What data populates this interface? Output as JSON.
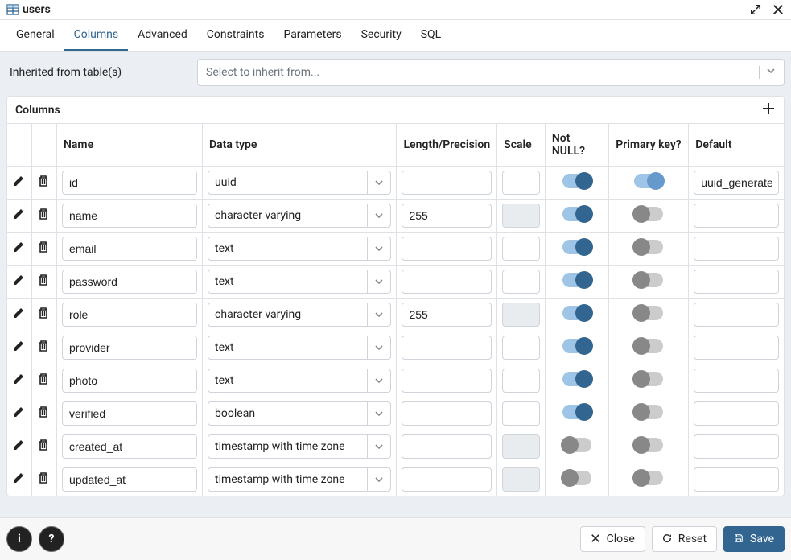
{
  "title": "users",
  "tabs": [
    "General",
    "Columns",
    "Advanced",
    "Constraints",
    "Parameters",
    "Security",
    "SQL"
  ],
  "activeTab": 1,
  "inherit": {
    "label": "Inherited from table(s)",
    "placeholder": "Select to inherit from..."
  },
  "panel": {
    "title": "Columns"
  },
  "headers": {
    "name": "Name",
    "datatype": "Data type",
    "length": "Length/Precision",
    "scale": "Scale",
    "notnull": "Not NULL?",
    "pk": "Primary key?",
    "def": "Default"
  },
  "rows": [
    {
      "name": "id",
      "type": "uuid",
      "len": "",
      "scale": "",
      "scaleDisabled": false,
      "notnull": true,
      "pk": true,
      "def": "uuid_generate"
    },
    {
      "name": "name",
      "type": "character varying",
      "len": "255",
      "scale": "",
      "scaleDisabled": true,
      "notnull": true,
      "pk": false,
      "def": ""
    },
    {
      "name": "email",
      "type": "text",
      "len": "",
      "scale": "",
      "scaleDisabled": false,
      "notnull": true,
      "pk": false,
      "def": ""
    },
    {
      "name": "password",
      "type": "text",
      "len": "",
      "scale": "",
      "scaleDisabled": false,
      "notnull": true,
      "pk": false,
      "def": ""
    },
    {
      "name": "role",
      "type": "character varying",
      "len": "255",
      "scale": "",
      "scaleDisabled": true,
      "notnull": true,
      "pk": false,
      "def": ""
    },
    {
      "name": "provider",
      "type": "text",
      "len": "",
      "scale": "",
      "scaleDisabled": false,
      "notnull": true,
      "pk": false,
      "def": ""
    },
    {
      "name": "photo",
      "type": "text",
      "len": "",
      "scale": "",
      "scaleDisabled": false,
      "notnull": true,
      "pk": false,
      "def": ""
    },
    {
      "name": "verified",
      "type": "boolean",
      "len": "",
      "scale": "",
      "scaleDisabled": false,
      "notnull": true,
      "pk": false,
      "def": ""
    },
    {
      "name": "created_at",
      "type": "timestamp with time zone",
      "len": "",
      "scale": "",
      "scaleDisabled": true,
      "notnull": false,
      "pk": false,
      "def": ""
    },
    {
      "name": "updated_at",
      "type": "timestamp with time zone",
      "len": "",
      "scale": "",
      "scaleDisabled": true,
      "notnull": false,
      "pk": false,
      "def": ""
    }
  ],
  "footer": {
    "close": "Close",
    "reset": "Reset",
    "save": "Save"
  },
  "colors": {
    "accent": "#326690",
    "toggleOn": "#326690",
    "toggleTrackOn": "#9ec5e6"
  }
}
